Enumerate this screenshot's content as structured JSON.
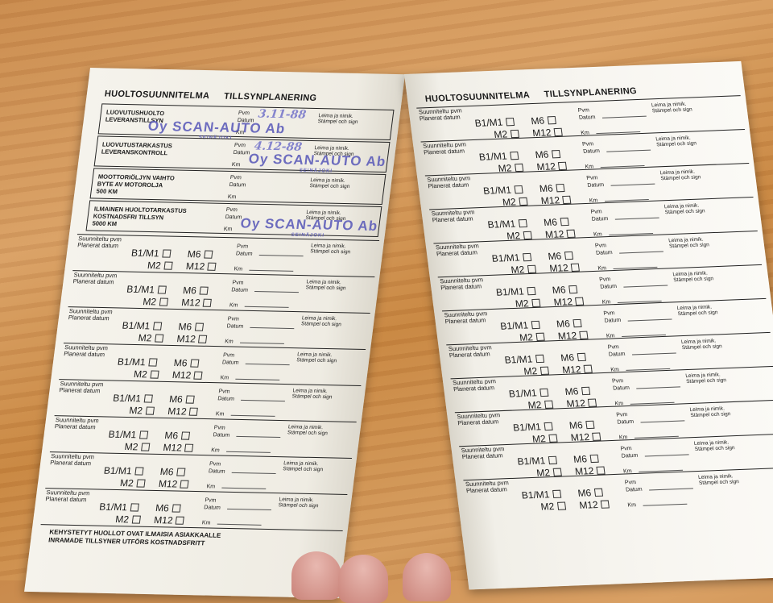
{
  "left_page": {
    "title_fi": "HUOLTOSUUNNITELMA",
    "title_sv": "TILLSYNPLANERING",
    "boxes": [
      {
        "fi": "LUOVUTUSHUOLTO",
        "sv": "LEVERANSTILLSYN",
        "km": "",
        "handwritten_date": "3.11-88",
        "stamp": "Oy SCAN-AUTO Ab",
        "stamp_city": "SEINÄJOKI"
      },
      {
        "fi": "LUOVUTUSTARKASTUS",
        "sv": "LEVERANSKONTROLL",
        "km": "",
        "handwritten_date": "4.12-88",
        "stamp": "Oy SCAN-AUTO Ab",
        "stamp_city": "SEINÄJOKI"
      },
      {
        "fi": "MOOTTORIÖLJYN VAIHTO",
        "sv": "BYTE AV MOTOROLJA",
        "km": "500 KM",
        "handwritten_date": "",
        "stamp": "",
        "stamp_city": ""
      },
      {
        "fi": "ILMAINEN HUOLTOTARKASTUS",
        "sv": "KOSTNADSFRI TILLSYN",
        "km": "5000 KM",
        "handwritten_date": "",
        "stamp": "Oy SCAN-AUTO Ab",
        "stamp_city": "SEINÄJOKI"
      }
    ],
    "row_count": 8,
    "footer_fi": "KEHYSTETYT HUOLLOT OVAT ILMAISIA ASIAKKAALLE",
    "footer_sv": "INRAMADE TILLSYNER UTFÖRS KOSTNADSFRITT"
  },
  "right_page": {
    "title_fi": "HUOLTOSUUNNITELMA",
    "title_sv": "TILLSYNPLANERING",
    "row_count": 12
  },
  "labels": {
    "planned_fi": "Suunniteltu pvm",
    "planned_sv": "Planerat datum",
    "pvm": "Pvm",
    "datum": "Datum",
    "km": "Km",
    "sign_fi": "Leima ja nimik.",
    "sign_sv": "Stämpel och sign",
    "b1m1": "B1/M1",
    "m6": "M6",
    "m2": "M2",
    "m12": "M12"
  }
}
